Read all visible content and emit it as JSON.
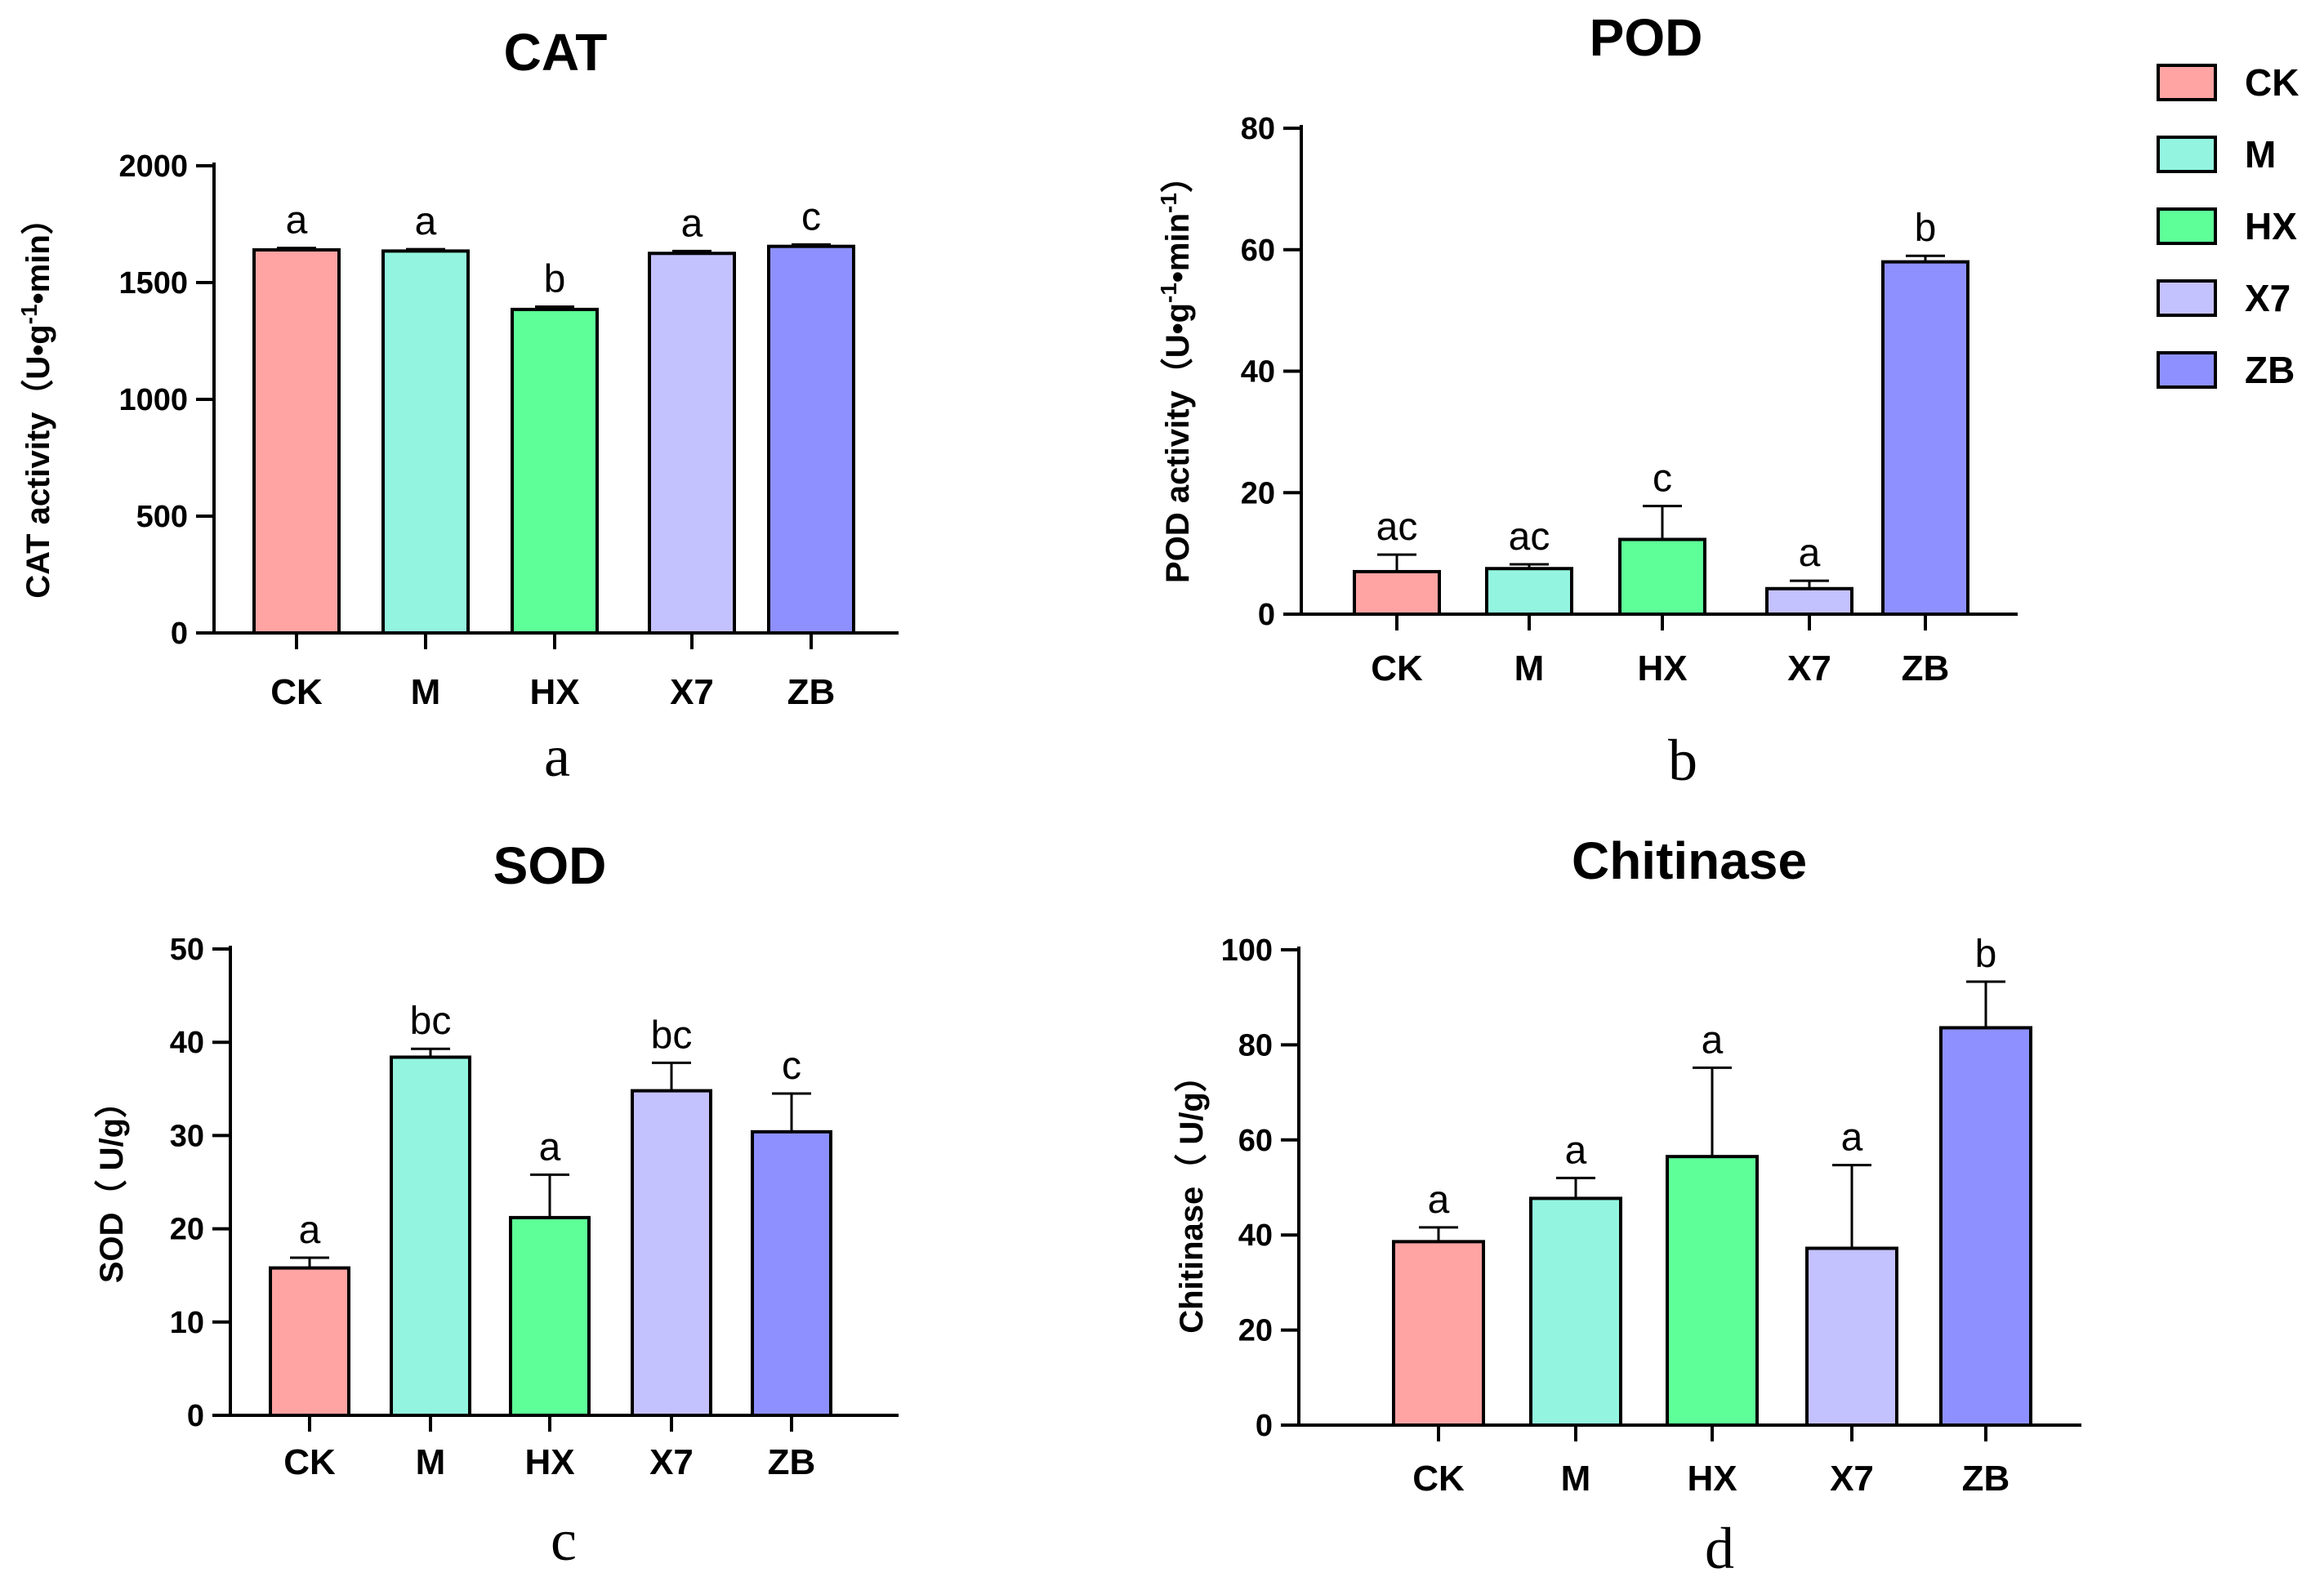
{
  "chart_data": [
    {
      "type": "bar",
      "title": "CAT",
      "panel_label": "a",
      "ylabel": "CAT activity（U•g-1•min）",
      "ylabel_parts": [
        "CAT activity（U•g",
        "-1",
        "•min）"
      ],
      "categories": [
        "CK",
        "M",
        "HX",
        "X7",
        "ZB"
      ],
      "values": [
        1640,
        1635,
        1385,
        1625,
        1655
      ],
      "errors": [
        8,
        8,
        12,
        10,
        8
      ],
      "significance": [
        "a",
        "a",
        "b",
        "a",
        "c"
      ],
      "ylim": [
        0,
        2000
      ],
      "yticks": [
        0,
        500,
        1000,
        1500,
        2000
      ]
    },
    {
      "type": "bar",
      "title": "POD",
      "panel_label": "b",
      "ylabel": "POD activity（U•g-1•min-1）",
      "ylabel_parts": [
        "POD activity（U•g",
        "-1",
        "•min",
        "-1",
        "）"
      ],
      "categories": [
        "CK",
        "M",
        "HX",
        "X7",
        "ZB"
      ],
      "values": [
        7,
        7.5,
        12.3,
        4.2,
        58
      ],
      "errors": [
        2.8,
        0.7,
        5.5,
        1.3,
        1.0
      ],
      "significance": [
        "ac",
        "ac",
        "c",
        "a",
        "b"
      ],
      "ylim": [
        0,
        80
      ],
      "yticks": [
        0,
        20,
        40,
        60,
        80
      ]
    },
    {
      "type": "bar",
      "title": "SOD",
      "panel_label": "c",
      "ylabel": "SOD（ U/g）",
      "categories": [
        "CK",
        "M",
        "HX",
        "X7",
        "ZB"
      ],
      "values": [
        15.8,
        38.4,
        21.2,
        34.8,
        30.4
      ],
      "errors": [
        1.1,
        0.9,
        4.6,
        3.0,
        4.1
      ],
      "significance": [
        "a",
        "bc",
        "a",
        "bc",
        "c"
      ],
      "ylim": [
        0,
        50
      ],
      "yticks": [
        0,
        10,
        20,
        30,
        40,
        50
      ]
    },
    {
      "type": "bar",
      "title": "Chitinase",
      "panel_label": "d",
      "ylabel": "Chitinase（ U/g）",
      "categories": [
        "CK",
        "M",
        "HX",
        "X7",
        "ZB"
      ],
      "values": [
        38.6,
        47.7,
        56.5,
        37.2,
        83.6
      ],
      "errors": [
        3.0,
        4.3,
        18.7,
        17.5,
        9.7
      ],
      "significance": [
        "a",
        "a",
        "a",
        "a",
        "b"
      ],
      "ylim": [
        0,
        100
      ],
      "yticks": [
        0,
        20,
        40,
        60,
        80,
        100
      ]
    }
  ],
  "legend": {
    "entries": [
      "CK",
      "M",
      "HX",
      "X7",
      "ZB"
    ],
    "placement": "top-right"
  },
  "colors": {
    "CK": "#FFA3A3",
    "M": "#93F5E0",
    "HX": "#5EFF98",
    "X7": "#C4C1FF",
    "ZB": "#8E90FF"
  }
}
